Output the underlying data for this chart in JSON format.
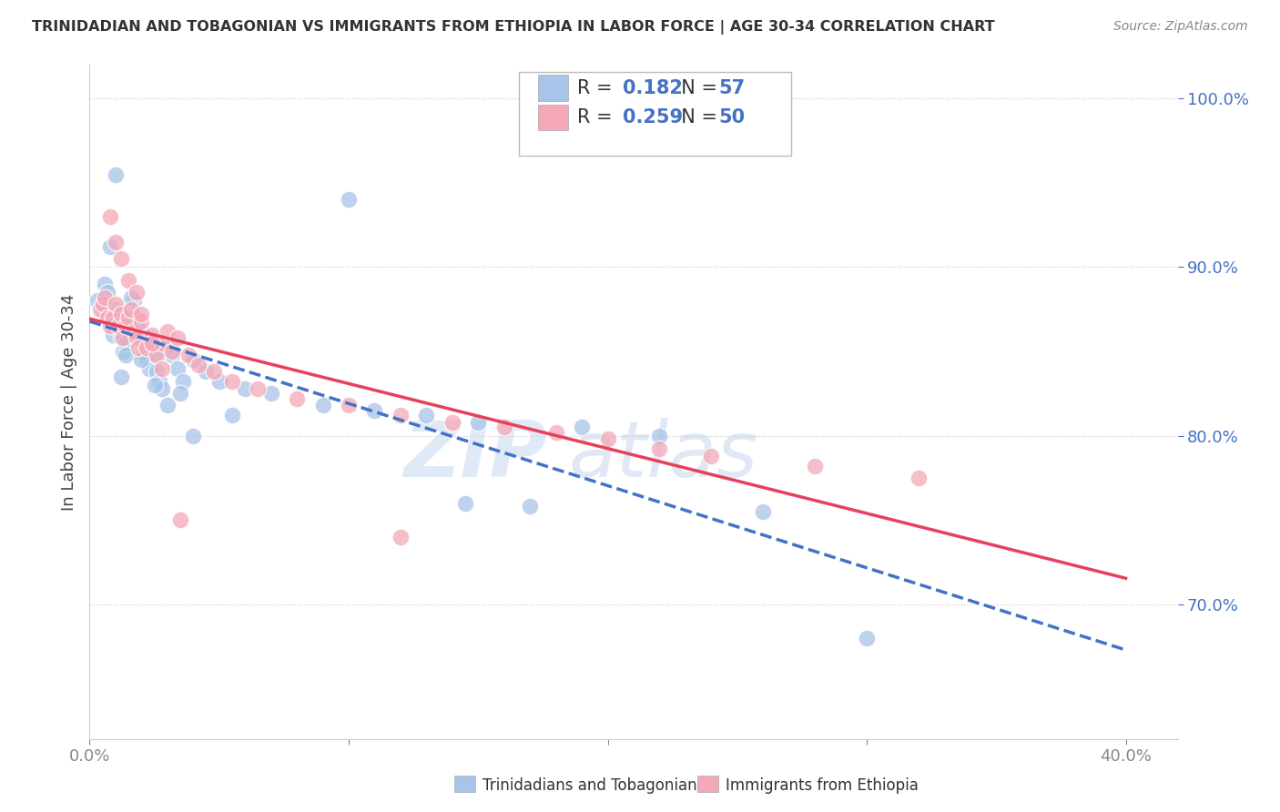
{
  "title": "TRINIDADIAN AND TOBAGONIAN VS IMMIGRANTS FROM ETHIOPIA IN LABOR FORCE | AGE 30-34 CORRELATION CHART",
  "source": "Source: ZipAtlas.com",
  "ylabel": "In Labor Force | Age 30-34",
  "xlim": [
    0.0,
    0.42
  ],
  "ylim": [
    0.62,
    1.02
  ],
  "xtick_vals": [
    0.0,
    0.1,
    0.2,
    0.3,
    0.4
  ],
  "xtick_labels": [
    "0.0%",
    "",
    "",
    "",
    "40.0%"
  ],
  "ytick_vals": [
    0.7,
    0.8,
    0.9,
    1.0
  ],
  "ytick_labels": [
    "70.0%",
    "80.0%",
    "90.0%",
    "100.0%"
  ],
  "legend_label1": "Trinidadians and Tobagonians",
  "legend_label2": "Immigrants from Ethiopia",
  "R1": 0.182,
  "N1": 57,
  "R2": 0.259,
  "N2": 50,
  "color_blue": "#a8c4e8",
  "color_blue_fill": "#a8c4e8",
  "color_pink": "#f4a8b8",
  "color_pink_fill": "#f4a8b8",
  "color_blue_line": "#4472c4",
  "color_pink_line": "#e8405a",
  "watermark_zip": "ZIP",
  "watermark_atlas": "atlas",
  "grid_color": "#cccccc",
  "blue_x": [
    0.003,
    0.005,
    0.006,
    0.007,
    0.008,
    0.009,
    0.01,
    0.011,
    0.012,
    0.013,
    0.014,
    0.015,
    0.016,
    0.017,
    0.018,
    0.019,
    0.02,
    0.021,
    0.022,
    0.023,
    0.024,
    0.025,
    0.026,
    0.027,
    0.028,
    0.03,
    0.032,
    0.034,
    0.036,
    0.04,
    0.045,
    0.05,
    0.06,
    0.07,
    0.09,
    0.11,
    0.13,
    0.15,
    0.19,
    0.22,
    0.008,
    0.01,
    0.012,
    0.014,
    0.016,
    0.018,
    0.02,
    0.025,
    0.03,
    0.035,
    0.04,
    0.055,
    0.1,
    0.145,
    0.17,
    0.26,
    0.3
  ],
  "blue_y": [
    0.88,
    0.875,
    0.89,
    0.885,
    0.87,
    0.86,
    0.875,
    0.865,
    0.858,
    0.85,
    0.855,
    0.865,
    0.875,
    0.88,
    0.87,
    0.858,
    0.862,
    0.85,
    0.845,
    0.84,
    0.855,
    0.848,
    0.838,
    0.832,
    0.828,
    0.855,
    0.848,
    0.84,
    0.832,
    0.845,
    0.838,
    0.832,
    0.828,
    0.825,
    0.818,
    0.815,
    0.812,
    0.808,
    0.805,
    0.8,
    0.912,
    0.955,
    0.835,
    0.848,
    0.882,
    0.865,
    0.845,
    0.83,
    0.818,
    0.825,
    0.8,
    0.812,
    0.94,
    0.76,
    0.758,
    0.755,
    0.68
  ],
  "pink_x": [
    0.004,
    0.005,
    0.006,
    0.007,
    0.008,
    0.009,
    0.01,
    0.011,
    0.012,
    0.013,
    0.014,
    0.015,
    0.016,
    0.017,
    0.018,
    0.019,
    0.02,
    0.022,
    0.024,
    0.026,
    0.028,
    0.03,
    0.032,
    0.034,
    0.038,
    0.042,
    0.048,
    0.055,
    0.065,
    0.08,
    0.1,
    0.12,
    0.14,
    0.16,
    0.18,
    0.2,
    0.22,
    0.24,
    0.28,
    0.32,
    0.008,
    0.01,
    0.012,
    0.015,
    0.018,
    0.02,
    0.024,
    0.028,
    0.035,
    0.12
  ],
  "pink_y": [
    0.875,
    0.878,
    0.882,
    0.87,
    0.865,
    0.87,
    0.878,
    0.865,
    0.872,
    0.858,
    0.865,
    0.87,
    0.875,
    0.862,
    0.858,
    0.852,
    0.868,
    0.852,
    0.86,
    0.848,
    0.855,
    0.862,
    0.85,
    0.858,
    0.848,
    0.842,
    0.838,
    0.832,
    0.828,
    0.822,
    0.818,
    0.812,
    0.808,
    0.805,
    0.802,
    0.798,
    0.792,
    0.788,
    0.782,
    0.775,
    0.93,
    0.915,
    0.905,
    0.892,
    0.885,
    0.872,
    0.855,
    0.84,
    0.75,
    0.74
  ]
}
